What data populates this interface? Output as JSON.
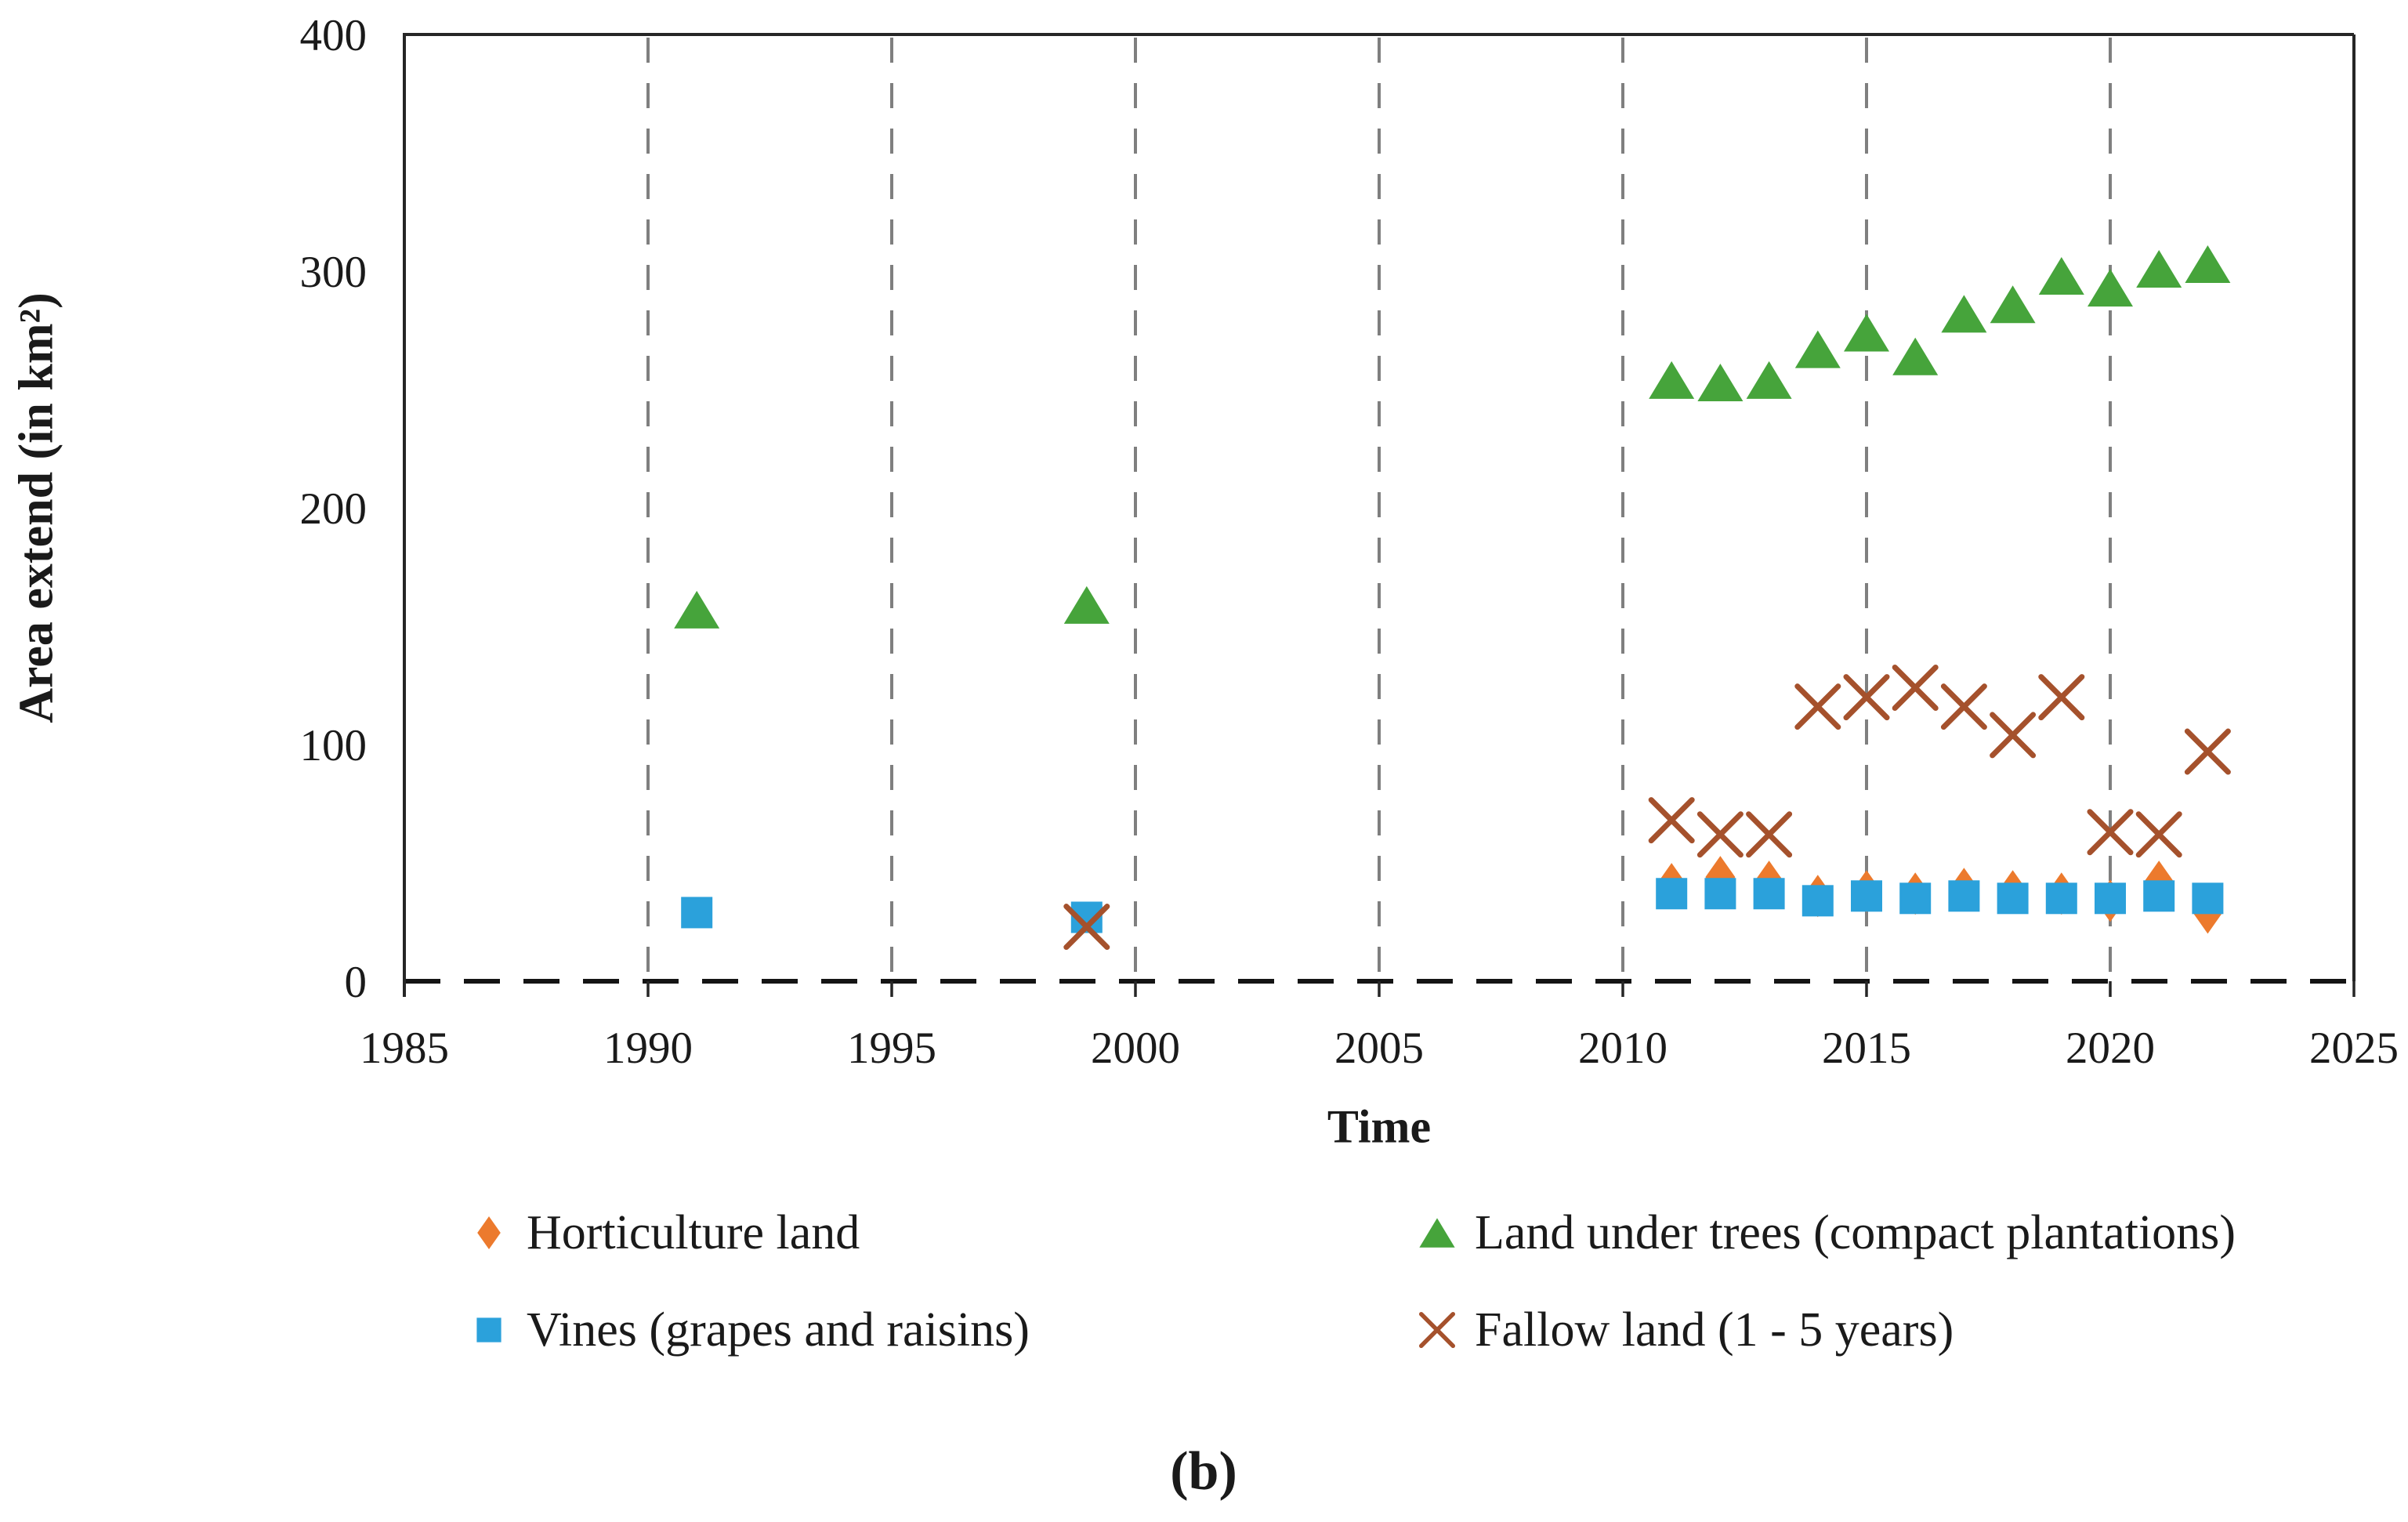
{
  "chart_data": {
    "type": "scatter",
    "title": "",
    "xlabel": "Time",
    "ylabel": "Area extend (in km²)",
    "caption": "(b)",
    "x_range": [
      1985,
      2025
    ],
    "y_range": [
      0,
      400
    ],
    "x_ticks": [
      1985,
      1990,
      1995,
      2000,
      2005,
      2010,
      2015,
      2020,
      2025
    ],
    "y_ticks": [
      0,
      100,
      200,
      300,
      400
    ],
    "x_gridlines": [
      1990,
      1995,
      2000,
      2005,
      2010,
      2015,
      2020
    ],
    "grid": "vertical-dashed",
    "legend_position": "bottom",
    "colors": {
      "gridline": "#7f7f7f",
      "axis": "#262626",
      "zero_line": "#141414",
      "text": "#1a1a1a"
    },
    "series": [
      {
        "id": "horticulture",
        "name": "Horticulture land",
        "marker": "diamond",
        "color": "#ec7a2d",
        "points": [
          [
            2011,
            41
          ],
          [
            2012,
            44
          ],
          [
            2013,
            42
          ],
          [
            2014,
            36
          ],
          [
            2015,
            38
          ],
          [
            2016,
            37
          ],
          [
            2017,
            39
          ],
          [
            2018,
            38
          ],
          [
            2019,
            37
          ],
          [
            2020,
            34
          ],
          [
            2021,
            42
          ],
          [
            2022,
            29
          ]
        ]
      },
      {
        "id": "trees",
        "name": "Land under trees (compact plantations)",
        "marker": "triangle",
        "color": "#46a43b",
        "points": [
          [
            1991,
            157
          ],
          [
            1999,
            159
          ],
          [
            2011,
            254
          ],
          [
            2012,
            253
          ],
          [
            2013,
            254
          ],
          [
            2014,
            267
          ],
          [
            2015,
            274
          ],
          [
            2016,
            264
          ],
          [
            2017,
            282
          ],
          [
            2018,
            286
          ],
          [
            2019,
            298
          ],
          [
            2020,
            293
          ],
          [
            2021,
            301
          ],
          [
            2022,
            303
          ]
        ]
      },
      {
        "id": "vines",
        "name": "Vines (grapes and raisins)",
        "marker": "square",
        "color": "#2ba1db",
        "points": [
          [
            1991,
            29
          ],
          [
            1999,
            27
          ],
          [
            2011,
            37
          ],
          [
            2012,
            37
          ],
          [
            2013,
            37
          ],
          [
            2014,
            34
          ],
          [
            2015,
            36
          ],
          [
            2016,
            35
          ],
          [
            2017,
            36
          ],
          [
            2018,
            35
          ],
          [
            2019,
            35
          ],
          [
            2020,
            35
          ],
          [
            2021,
            36
          ],
          [
            2022,
            35
          ]
        ]
      },
      {
        "id": "fallow",
        "name": "Fallow land (1 - 5 years)",
        "marker": "x",
        "color": "#a5512c",
        "points": [
          [
            1999,
            23
          ],
          [
            2011,
            68
          ],
          [
            2012,
            62
          ],
          [
            2013,
            62
          ],
          [
            2014,
            116
          ],
          [
            2015,
            120
          ],
          [
            2016,
            124
          ],
          [
            2017,
            116
          ],
          [
            2018,
            104
          ],
          [
            2019,
            120
          ],
          [
            2020,
            63
          ],
          [
            2021,
            62
          ],
          [
            2022,
            97
          ]
        ]
      }
    ]
  }
}
